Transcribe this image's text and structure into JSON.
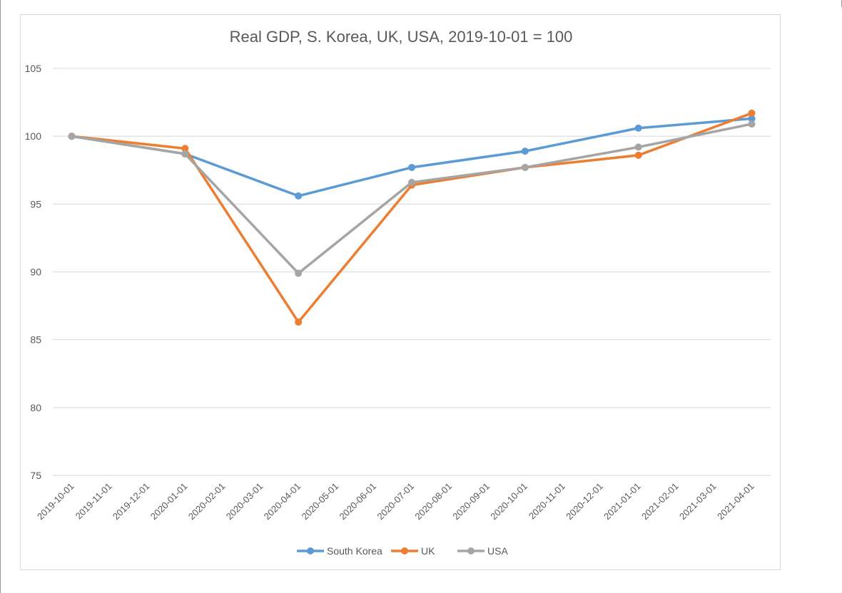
{
  "chart_data": {
    "type": "line",
    "title": "Real GDP, S. Korea, UK, USA, 2019-10-01 = 100",
    "x": [
      "2019-10-01",
      "2019-11-01",
      "2019-12-01",
      "2020-01-01",
      "2020-02-01",
      "2020-03-01",
      "2020-04-01",
      "2020-05-01",
      "2020-06-01",
      "2020-07-01",
      "2020-08-01",
      "2020-09-01",
      "2020-10-01",
      "2020-11-01",
      "2020-12-01",
      "2021-01-01",
      "2021-02-01",
      "2021-03-01",
      "2021-04-01"
    ],
    "yticks": [
      75,
      80,
      85,
      90,
      95,
      100,
      105
    ],
    "ylim": [
      75,
      105
    ],
    "grid": true,
    "legend_position": "bottom",
    "series": [
      {
        "name": "South Korea",
        "color": "#5b9bd5",
        "points": [
          [
            "2019-10-01",
            100.0
          ],
          [
            "2020-01-01",
            98.7
          ],
          [
            "2020-04-01",
            95.6
          ],
          [
            "2020-07-01",
            97.7
          ],
          [
            "2020-10-01",
            98.9
          ],
          [
            "2021-01-01",
            100.6
          ],
          [
            "2021-04-01",
            101.3
          ]
        ]
      },
      {
        "name": "UK",
        "color": "#ed7d31",
        "points": [
          [
            "2019-10-01",
            100.0
          ],
          [
            "2020-01-01",
            99.1
          ],
          [
            "2020-04-01",
            86.3
          ],
          [
            "2020-07-01",
            96.4
          ],
          [
            "2020-10-01",
            97.7
          ],
          [
            "2021-01-01",
            98.6
          ],
          [
            "2021-04-01",
            101.7
          ]
        ]
      },
      {
        "name": "USA",
        "color": "#a5a5a5",
        "points": [
          [
            "2019-10-01",
            100.0
          ],
          [
            "2020-01-01",
            98.7
          ],
          [
            "2020-04-01",
            89.9
          ],
          [
            "2020-07-01",
            96.6
          ],
          [
            "2020-10-01",
            97.7
          ],
          [
            "2021-01-01",
            99.2
          ],
          [
            "2021-04-01",
            100.9
          ]
        ]
      }
    ]
  }
}
